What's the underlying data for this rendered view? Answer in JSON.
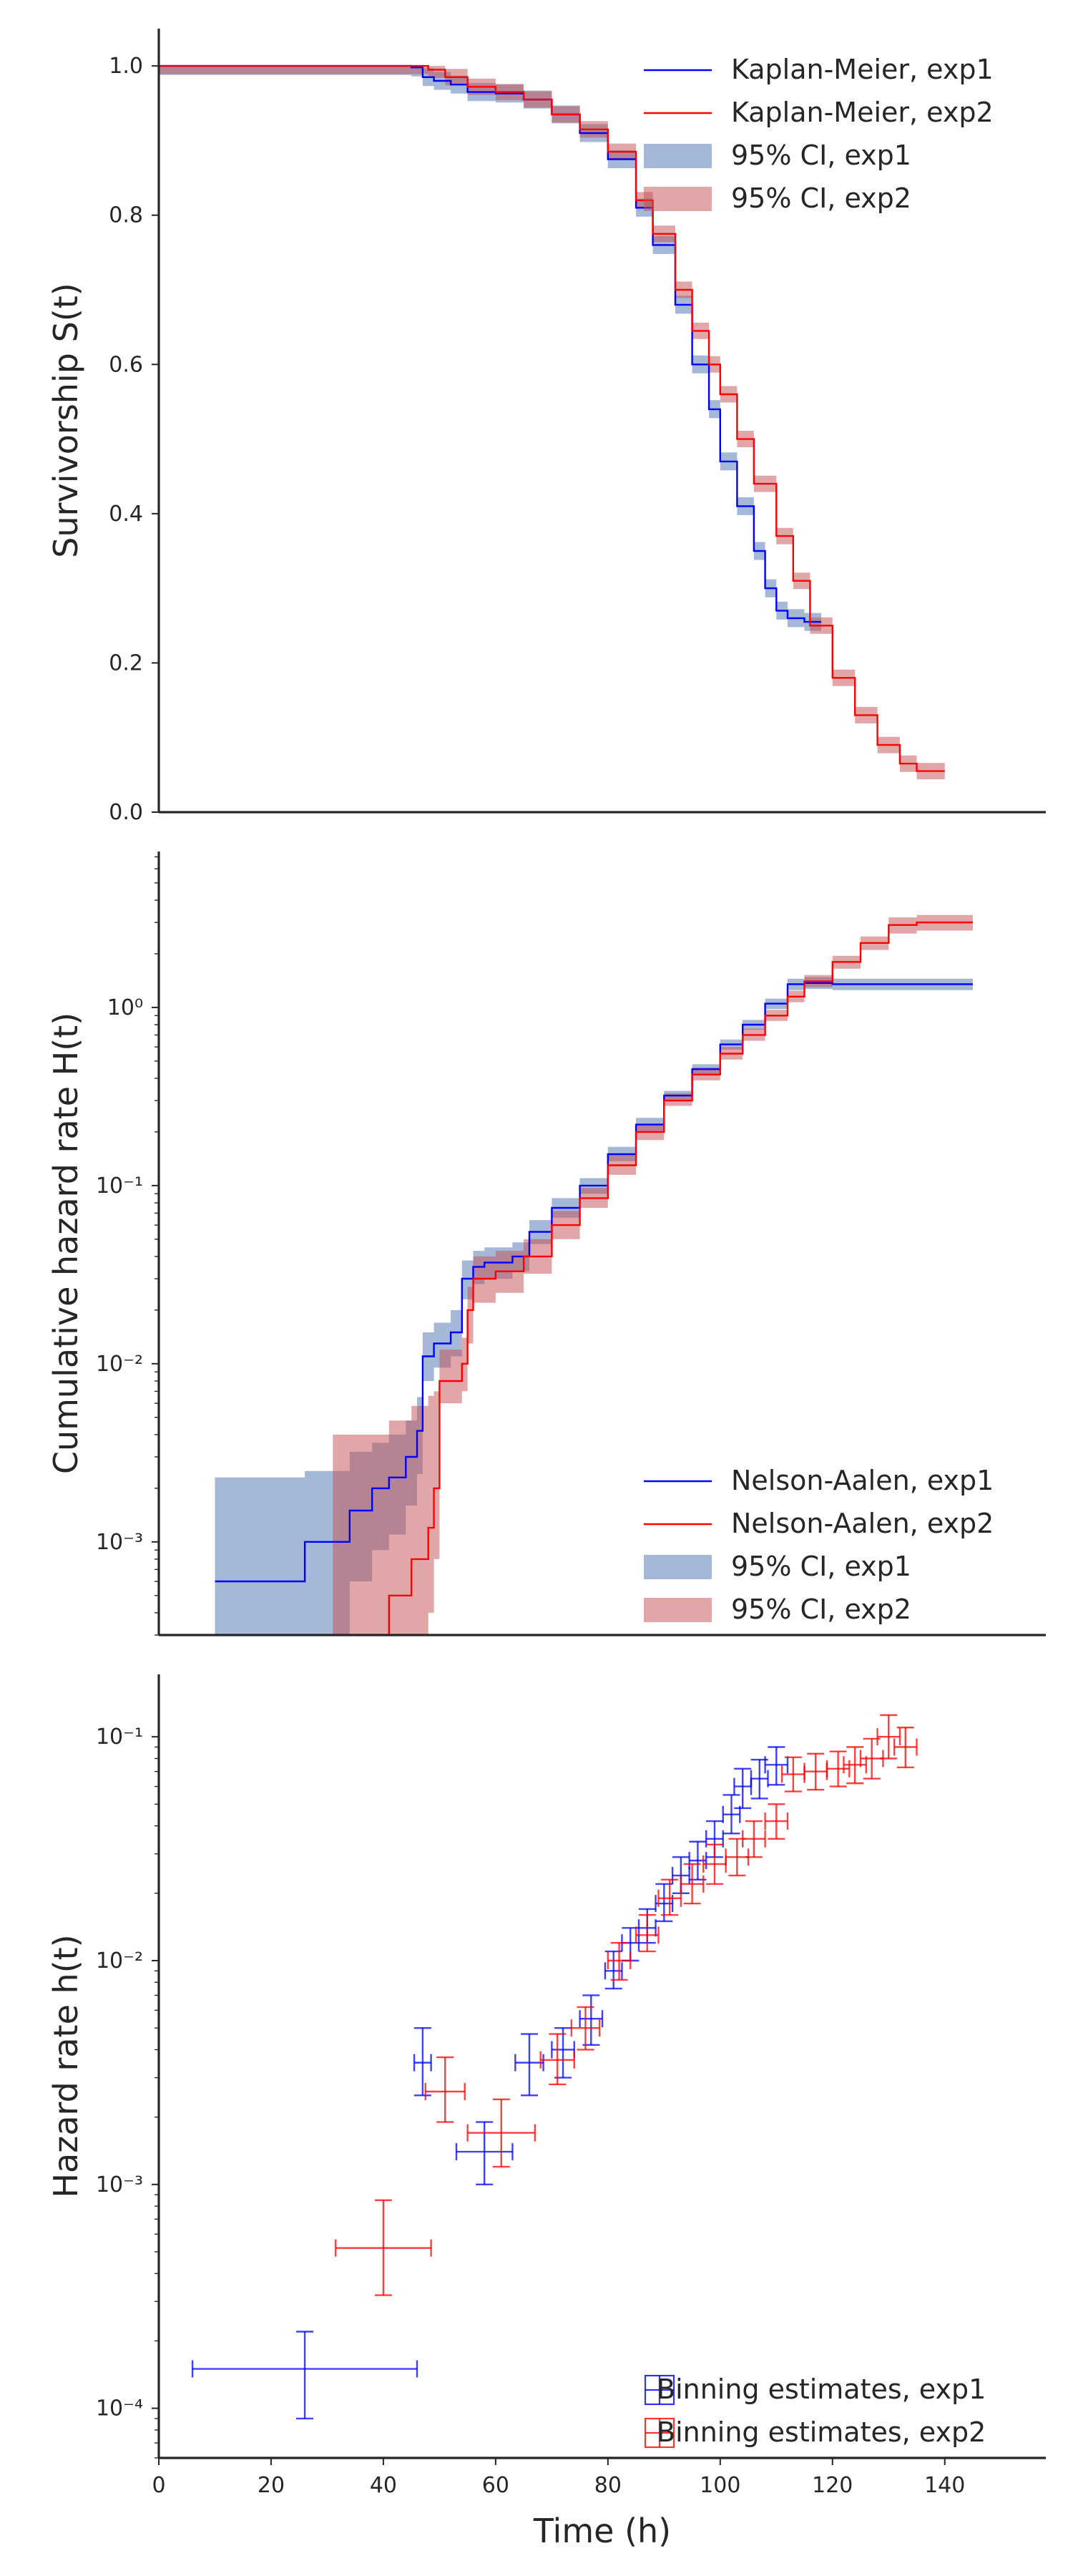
{
  "chart_data": [
    {
      "type": "line",
      "panel": "survival",
      "xlabel": "",
      "ylabel": "Survivorship S(t)",
      "xlim": [
        0,
        158
      ],
      "ylim": [
        0,
        1.05
      ],
      "yscale": "linear",
      "yticks": [
        0.0,
        0.2,
        0.4,
        0.6,
        0.8,
        1.0
      ],
      "ytick_labels": [
        "0.0",
        "0.2",
        "0.4",
        "0.6",
        "0.8",
        "1.0"
      ],
      "grid": false,
      "legend": "top-right",
      "legend_entries": [
        "Kaplan-Meier, exp1",
        "Kaplan-Meier, exp2",
        "95% CI, exp1",
        "95% CI, exp2"
      ],
      "series": [
        {
          "name": "Kaplan-Meier, exp1",
          "color": "#0000ff",
          "ci_color": "#4c72b0",
          "ci_halfwidth": 0.012,
          "x": [
            0,
            30,
            45,
            47,
            49,
            52,
            55,
            60,
            65,
            70,
            75,
            80,
            85,
            88,
            92,
            95,
            98,
            100,
            103,
            106,
            108,
            110,
            112,
            115,
            118
          ],
          "y": [
            1.0,
            1.0,
            0.998,
            0.985,
            0.98,
            0.975,
            0.965,
            0.963,
            0.955,
            0.935,
            0.91,
            0.875,
            0.81,
            0.76,
            0.68,
            0.6,
            0.54,
            0.47,
            0.41,
            0.35,
            0.3,
            0.27,
            0.26,
            0.255,
            0.255
          ]
        },
        {
          "name": "Kaplan-Meier, exp2",
          "color": "#ff0000",
          "ci_color": "#c44e52",
          "ci_halfwidth": 0.011,
          "x": [
            0,
            30,
            48,
            51,
            55,
            60,
            65,
            70,
            75,
            80,
            85,
            88,
            92,
            95,
            98,
            100,
            103,
            106,
            110,
            113,
            116,
            120,
            124,
            128,
            132,
            135,
            140
          ],
          "y": [
            1.0,
            1.0,
            0.995,
            0.985,
            0.972,
            0.965,
            0.955,
            0.935,
            0.915,
            0.885,
            0.82,
            0.775,
            0.7,
            0.645,
            0.6,
            0.56,
            0.5,
            0.44,
            0.37,
            0.31,
            0.25,
            0.18,
            0.13,
            0.09,
            0.065,
            0.055,
            0.055
          ]
        }
      ]
    },
    {
      "type": "line",
      "panel": "cumulative-hazard",
      "xlabel": "",
      "ylabel": "Cumulative hazard rate H(t)",
      "xlim": [
        0,
        158
      ],
      "ylim": [
        0.0003,
        7.5
      ],
      "yscale": "log",
      "yticks": [
        0.001,
        0.01,
        0.1,
        1
      ],
      "ytick_labels": [
        "10⁻³",
        "10⁻²",
        "10⁻¹",
        "10⁰"
      ],
      "grid": false,
      "legend": "lower-right",
      "legend_entries": [
        "Nelson-Aalen, exp1",
        "Nelson-Aalen, exp2",
        "95% CI, exp1",
        "95% CI, exp2"
      ],
      "series": [
        {
          "name": "Nelson-Aalen, exp1",
          "color": "#0000ff",
          "ci_color": "#4c72b0",
          "x": [
            10,
            26,
            34,
            38,
            41,
            44,
            46,
            47,
            49,
            52,
            54,
            56,
            58,
            63,
            66,
            70,
            75,
            80,
            85,
            90,
            95,
            100,
            104,
            108,
            112,
            115,
            120,
            130,
            145
          ],
          "y": [
            0.0006,
            0.001,
            0.0015,
            0.002,
            0.0023,
            0.003,
            0.0042,
            0.011,
            0.013,
            0.015,
            0.03,
            0.035,
            0.037,
            0.04,
            0.055,
            0.075,
            0.1,
            0.15,
            0.22,
            0.32,
            0.45,
            0.62,
            0.8,
            1.05,
            1.35,
            1.37,
            1.35,
            1.35,
            1.35
          ],
          "ci_low": [
            0.0001,
            0.0003,
            0.0006,
            0.0009,
            0.0011,
            0.0016,
            0.0024,
            0.008,
            0.0095,
            0.011,
            0.023,
            0.028,
            0.03,
            0.033,
            0.047,
            0.066,
            0.09,
            0.137,
            0.2,
            0.3,
            0.42,
            0.58,
            0.75,
            0.98,
            1.25,
            1.27,
            1.25,
            1.25,
            1.25
          ],
          "ci_high": [
            0.0023,
            0.0025,
            0.0032,
            0.0036,
            0.004,
            0.0048,
            0.0065,
            0.015,
            0.017,
            0.02,
            0.038,
            0.043,
            0.045,
            0.048,
            0.064,
            0.085,
            0.11,
            0.165,
            0.24,
            0.34,
            0.48,
            0.66,
            0.85,
            1.12,
            1.45,
            1.48,
            1.45,
            1.45,
            1.45
          ]
        },
        {
          "name": "Nelson-Aalen, exp2",
          "color": "#ff0000",
          "ci_color": "#c44e52",
          "x": [
            31,
            40,
            41,
            45,
            48,
            49,
            50,
            54,
            55,
            56,
            60,
            65,
            70,
            75,
            80,
            85,
            90,
            95,
            100,
            104,
            108,
            112,
            115,
            120,
            125,
            130,
            135,
            145
          ],
          "y": [
            0.0002,
            0.0003,
            0.0005,
            0.0008,
            0.0012,
            0.002,
            0.008,
            0.01,
            0.02,
            0.03,
            0.033,
            0.04,
            0.06,
            0.085,
            0.13,
            0.2,
            0.3,
            0.42,
            0.55,
            0.7,
            0.9,
            1.15,
            1.4,
            1.8,
            2.3,
            2.9,
            3.0,
            3.0
          ],
          "ci_low": [
            0.0001,
            0.0001,
            0.0001,
            0.0002,
            0.0004,
            0.0008,
            0.006,
            0.007,
            0.013,
            0.022,
            0.025,
            0.032,
            0.05,
            0.075,
            0.115,
            0.18,
            0.28,
            0.39,
            0.51,
            0.65,
            0.84,
            1.07,
            1.3,
            1.65,
            2.1,
            2.6,
            2.7,
            2.7
          ],
          "ci_high": [
            0.004,
            0.004,
            0.0048,
            0.0058,
            0.0066,
            0.007,
            0.012,
            0.014,
            0.027,
            0.04,
            0.043,
            0.05,
            0.072,
            0.097,
            0.148,
            0.22,
            0.33,
            0.46,
            0.6,
            0.76,
            0.97,
            1.24,
            1.52,
            1.95,
            2.5,
            3.2,
            3.3,
            3.3
          ]
        }
      ]
    },
    {
      "type": "scatter",
      "panel": "hazard-rate",
      "xlabel": "Time (h)",
      "ylabel": "Hazard rate h(t)",
      "xlim": [
        0,
        158
      ],
      "ylim": [
        6e-05,
        0.19
      ],
      "yscale": "log",
      "xticks": [
        0,
        20,
        40,
        60,
        80,
        100,
        120,
        140
      ],
      "xtick_labels": [
        "0",
        "20",
        "40",
        "60",
        "80",
        "100",
        "120",
        "140"
      ],
      "yticks": [
        0.0001,
        0.001,
        0.01,
        0.1
      ],
      "ytick_labels": [
        "10⁻⁴",
        "10⁻³",
        "10⁻²",
        "10⁻¹"
      ],
      "grid": false,
      "legend": "lower-right",
      "legend_entries": [
        "Binning estimates, exp1",
        "Binning estimates, exp2"
      ],
      "series": [
        {
          "name": "Binning estimates, exp1",
          "color": "#0000ff",
          "points": [
            {
              "x": 26,
              "y": 0.00015,
              "xerr": 20,
              "ylo": 9e-05,
              "yhi": 0.00022
            },
            {
              "x": 47,
              "y": 0.0035,
              "xerr": 1.5,
              "ylo": 0.0025,
              "yhi": 0.005
            },
            {
              "x": 58,
              "y": 0.0014,
              "xerr": 5,
              "ylo": 0.001,
              "yhi": 0.0019
            },
            {
              "x": 66,
              "y": 0.0035,
              "xerr": 2.5,
              "ylo": 0.0025,
              "yhi": 0.0047
            },
            {
              "x": 72,
              "y": 0.004,
              "xerr": 2,
              "ylo": 0.003,
              "yhi": 0.005
            },
            {
              "x": 77,
              "y": 0.0055,
              "xerr": 2,
              "ylo": 0.0042,
              "yhi": 0.007
            },
            {
              "x": 81,
              "y": 0.009,
              "xerr": 1.5,
              "ylo": 0.0075,
              "yhi": 0.011
            },
            {
              "x": 84,
              "y": 0.012,
              "xerr": 1.5,
              "ylo": 0.01,
              "yhi": 0.014
            },
            {
              "x": 87,
              "y": 0.014,
              "xerr": 1.5,
              "ylo": 0.012,
              "yhi": 0.017
            },
            {
              "x": 90,
              "y": 0.018,
              "xerr": 1.5,
              "ylo": 0.015,
              "yhi": 0.022
            },
            {
              "x": 93,
              "y": 0.024,
              "xerr": 1.5,
              "ylo": 0.02,
              "yhi": 0.029
            },
            {
              "x": 96,
              "y": 0.028,
              "xerr": 1.5,
              "ylo": 0.023,
              "yhi": 0.034
            },
            {
              "x": 99,
              "y": 0.035,
              "xerr": 1.5,
              "ylo": 0.029,
              "yhi": 0.042
            },
            {
              "x": 102,
              "y": 0.045,
              "xerr": 1.5,
              "ylo": 0.037,
              "yhi": 0.055
            },
            {
              "x": 104,
              "y": 0.06,
              "xerr": 1.5,
              "ylo": 0.048,
              "yhi": 0.072
            },
            {
              "x": 107,
              "y": 0.065,
              "xerr": 1.5,
              "ylo": 0.053,
              "yhi": 0.079
            },
            {
              "x": 110,
              "y": 0.075,
              "xerr": 2,
              "ylo": 0.061,
              "yhi": 0.09
            }
          ]
        },
        {
          "name": "Binning estimates, exp2",
          "color": "#ff0000",
          "points": [
            {
              "x": 40,
              "y": 0.00052,
              "xerr": 8.5,
              "ylo": 0.00032,
              "yhi": 0.00085
            },
            {
              "x": 51,
              "y": 0.0026,
              "xerr": 3.5,
              "ylo": 0.0019,
              "yhi": 0.0037
            },
            {
              "x": 61,
              "y": 0.0017,
              "xerr": 6,
              "ylo": 0.0012,
              "yhi": 0.0024
            },
            {
              "x": 71,
              "y": 0.0036,
              "xerr": 3,
              "ylo": 0.0028,
              "yhi": 0.0047
            },
            {
              "x": 76,
              "y": 0.005,
              "xerr": 2.5,
              "ylo": 0.004,
              "yhi": 0.0062
            },
            {
              "x": 82,
              "y": 0.01,
              "xerr": 2,
              "ylo": 0.0082,
              "yhi": 0.012
            },
            {
              "x": 87,
              "y": 0.013,
              "xerr": 2,
              "ylo": 0.011,
              "yhi": 0.016
            },
            {
              "x": 91,
              "y": 0.019,
              "xerr": 2,
              "ylo": 0.016,
              "yhi": 0.023
            },
            {
              "x": 95,
              "y": 0.022,
              "xerr": 2,
              "ylo": 0.018,
              "yhi": 0.027
            },
            {
              "x": 99,
              "y": 0.027,
              "xerr": 2,
              "ylo": 0.022,
              "yhi": 0.033
            },
            {
              "x": 103,
              "y": 0.029,
              "xerr": 2,
              "ylo": 0.024,
              "yhi": 0.035
            },
            {
              "x": 106,
              "y": 0.035,
              "xerr": 2,
              "ylo": 0.029,
              "yhi": 0.042
            },
            {
              "x": 110,
              "y": 0.042,
              "xerr": 2,
              "ylo": 0.035,
              "yhi": 0.05
            },
            {
              "x": 113,
              "y": 0.068,
              "xerr": 2,
              "ylo": 0.057,
              "yhi": 0.081
            },
            {
              "x": 117,
              "y": 0.07,
              "xerr": 2,
              "ylo": 0.058,
              "yhi": 0.084
            },
            {
              "x": 121,
              "y": 0.072,
              "xerr": 2,
              "ylo": 0.06,
              "yhi": 0.086
            },
            {
              "x": 124,
              "y": 0.075,
              "xerr": 2,
              "ylo": 0.062,
              "yhi": 0.09
            },
            {
              "x": 127,
              "y": 0.08,
              "xerr": 2,
              "ylo": 0.065,
              "yhi": 0.098
            },
            {
              "x": 130,
              "y": 0.1,
              "xerr": 2,
              "ylo": 0.08,
              "yhi": 0.125
            },
            {
              "x": 133,
              "y": 0.09,
              "xerr": 2,
              "ylo": 0.073,
              "yhi": 0.11
            }
          ]
        }
      ]
    }
  ]
}
